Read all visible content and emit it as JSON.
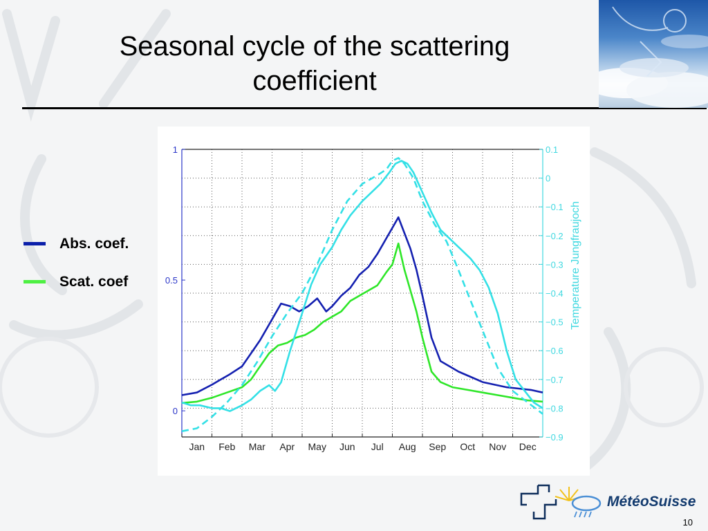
{
  "slide": {
    "title": "Seasonal cycle of the scattering\ncoefficient",
    "page_number": "10",
    "logo_text": "MétéoSuisse"
  },
  "legend": [
    {
      "label": "Abs. coef.",
      "color": "#0b1faa"
    },
    {
      "label": "Scat. coef",
      "color": "#4ef043"
    }
  ],
  "colors": {
    "abs": "#1420b0",
    "scat": "#2ee628",
    "temp": "#33e0e6",
    "left_axis": "#2a35c8",
    "right_axis": "#3fd8e0"
  },
  "chart_data": {
    "type": "line",
    "x_ticks": [
      "Jan",
      "Feb",
      "Mar",
      "Apr",
      "May",
      "Jun",
      "Jul",
      "Aug",
      "Sep",
      "Oct",
      "Nov",
      "Dec"
    ],
    "x_range": [
      1,
      13
    ],
    "y_left": {
      "range": [
        -0.1,
        1.0
      ],
      "ticks": [
        0,
        0.5,
        1
      ],
      "tick_labels": [
        "0",
        "0.5",
        "1"
      ]
    },
    "y_right": {
      "label": "Temperature Jungfraujoch",
      "range": [
        -0.9,
        0.1
      ],
      "ticks": [
        0.1,
        0,
        -0.1,
        -0.2,
        -0.3,
        -0.4,
        -0.5,
        -0.6,
        -0.7,
        -0.8,
        -0.9
      ],
      "tick_labels": [
        "0.1",
        "0",
        "−0.1",
        "−0.2",
        "−0.3",
        "−0.4",
        "−0.5",
        "−0.6",
        "−0.7",
        "−0.8",
        "−0.9"
      ]
    },
    "grid": true,
    "series": [
      {
        "name": "Abs. coef.",
        "axis": "left",
        "style": "solid",
        "x": [
          1.0,
          1.5,
          2.0,
          2.3,
          2.6,
          3.0,
          3.3,
          3.6,
          3.9,
          4.1,
          4.3,
          4.6,
          4.9,
          5.2,
          5.5,
          5.8,
          6.0,
          6.3,
          6.6,
          6.9,
          7.2,
          7.5,
          7.8,
          8.0,
          8.2,
          8.4,
          8.6,
          8.8,
          9.0,
          9.3,
          9.6,
          9.9,
          10.2,
          10.6,
          11.0,
          11.4,
          11.8,
          12.2,
          12.6,
          13.0
        ],
        "y": [
          0.06,
          0.07,
          0.1,
          0.12,
          0.14,
          0.17,
          0.22,
          0.27,
          0.33,
          0.37,
          0.41,
          0.4,
          0.38,
          0.4,
          0.43,
          0.38,
          0.4,
          0.44,
          0.47,
          0.52,
          0.55,
          0.6,
          0.66,
          0.7,
          0.74,
          0.68,
          0.62,
          0.54,
          0.44,
          0.28,
          0.19,
          0.17,
          0.15,
          0.13,
          0.11,
          0.1,
          0.09,
          0.085,
          0.08,
          0.07
        ]
      },
      {
        "name": "Scat. coef",
        "axis": "left",
        "style": "solid",
        "x": [
          1.0,
          1.5,
          2.0,
          2.5,
          3.0,
          3.3,
          3.6,
          3.9,
          4.2,
          4.5,
          4.8,
          5.1,
          5.4,
          5.7,
          6.0,
          6.3,
          6.6,
          6.9,
          7.2,
          7.5,
          7.8,
          8.0,
          8.2,
          8.4,
          8.6,
          8.8,
          9.0,
          9.3,
          9.6,
          10.0,
          10.5,
          11.0,
          11.5,
          12.0,
          12.5,
          13.0
        ],
        "y": [
          0.03,
          0.035,
          0.05,
          0.07,
          0.09,
          0.12,
          0.17,
          0.22,
          0.25,
          0.26,
          0.28,
          0.29,
          0.31,
          0.34,
          0.36,
          0.38,
          0.42,
          0.44,
          0.46,
          0.48,
          0.53,
          0.56,
          0.64,
          0.54,
          0.46,
          0.38,
          0.28,
          0.15,
          0.11,
          0.09,
          0.08,
          0.07,
          0.06,
          0.05,
          0.04,
          0.035
        ]
      },
      {
        "name": "",
        "axis": "right",
        "style": "solid",
        "x": [
          1.0,
          1.3,
          1.6,
          2.0,
          2.3,
          2.6,
          3.0,
          3.3,
          3.6,
          3.9,
          4.1,
          4.3,
          4.6,
          5.0,
          5.3,
          5.6,
          6.0,
          6.3,
          6.6,
          7.0,
          7.3,
          7.6,
          7.9,
          8.1,
          8.3,
          8.5,
          8.7,
          9.0,
          9.3,
          9.6,
          10.0,
          10.3,
          10.6,
          10.9,
          11.2,
          11.5,
          11.8,
          12.1,
          12.4,
          12.7,
          13.0
        ],
        "y": [
          -0.78,
          -0.79,
          -0.79,
          -0.8,
          -0.8,
          -0.81,
          -0.79,
          -0.77,
          -0.74,
          -0.72,
          -0.74,
          -0.71,
          -0.6,
          -0.47,
          -0.37,
          -0.3,
          -0.24,
          -0.18,
          -0.13,
          -0.08,
          -0.05,
          -0.02,
          0.02,
          0.05,
          0.06,
          0.05,
          0.02,
          -0.05,
          -0.12,
          -0.18,
          -0.22,
          -0.25,
          -0.28,
          -0.32,
          -0.38,
          -0.47,
          -0.6,
          -0.7,
          -0.74,
          -0.78,
          -0.8
        ]
      },
      {
        "name": "",
        "axis": "right",
        "style": "dashed",
        "x": [
          1.0,
          1.5,
          2.0,
          2.5,
          3.0,
          3.5,
          4.0,
          4.5,
          5.0,
          5.5,
          6.0,
          6.5,
          7.0,
          7.5,
          7.8,
          8.0,
          8.2,
          8.4,
          8.7,
          9.0,
          9.4,
          9.8,
          10.2,
          10.5,
          11.0,
          11.5,
          12.0,
          12.5,
          13.0
        ],
        "y": [
          -0.88,
          -0.87,
          -0.83,
          -0.78,
          -0.72,
          -0.64,
          -0.55,
          -0.47,
          -0.4,
          -0.3,
          -0.18,
          -0.08,
          -0.02,
          0.01,
          0.03,
          0.06,
          0.07,
          0.05,
          0.0,
          -0.08,
          -0.16,
          -0.22,
          -0.32,
          -0.4,
          -0.53,
          -0.66,
          -0.74,
          -0.78,
          -0.82
        ]
      }
    ]
  }
}
